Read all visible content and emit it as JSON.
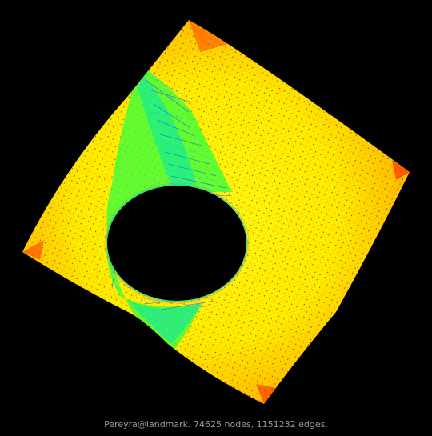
{
  "caption": "Pereyra@landmark. 74625 nodes, 1151232 edges.",
  "colors": {
    "background": "#000000",
    "edge_low": "#1030ff",
    "edge_mid": "#00e0c0",
    "edge_green": "#40ff20",
    "edge_yellow": "#ffff00",
    "edge_orange": "#ff9000",
    "edge_red": "#ff3000",
    "caption": "#9a9a9a"
  }
}
